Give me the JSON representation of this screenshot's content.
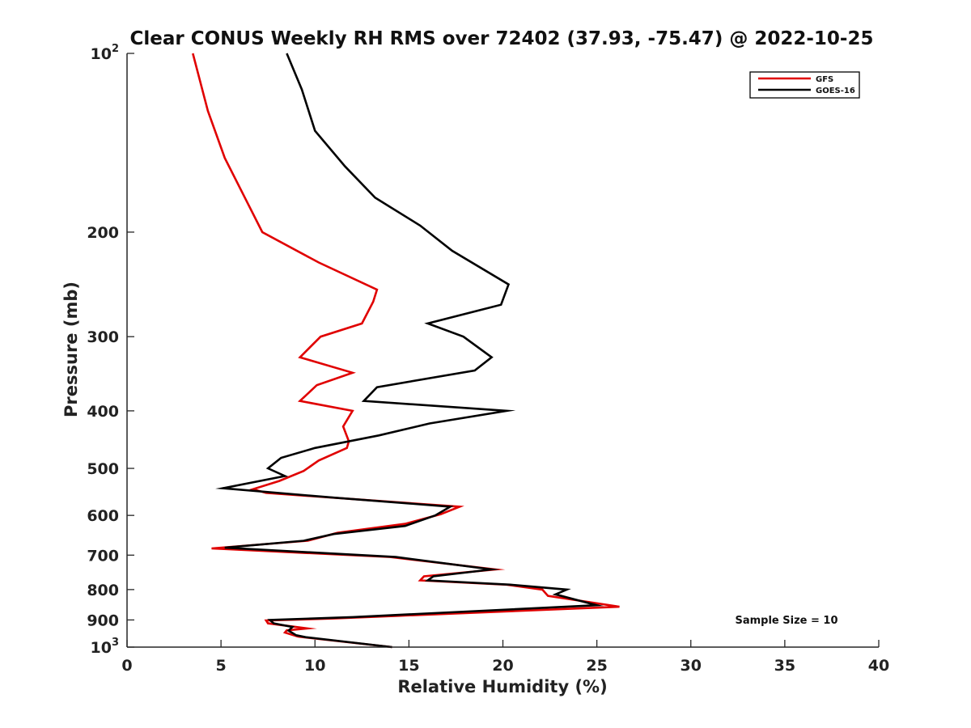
{
  "chart_data": {
    "type": "line",
    "title": "Clear CONUS Weekly RH RMS over 72402 (37.93, -75.47) @ 2022-10-25",
    "xlabel": "Relative Humidity (%)",
    "ylabel": "Pressure (mb)",
    "xlim": [
      0,
      40
    ],
    "ylim": [
      100,
      1000
    ],
    "yscale": "log",
    "y_reversed": true,
    "x_ticks": [
      0,
      5,
      10,
      15,
      20,
      25,
      30,
      35,
      40
    ],
    "x_tick_labels": [
      "0",
      "5",
      "10",
      "15",
      "20",
      "25",
      "30",
      "35",
      "40"
    ],
    "y_ticks": [
      100,
      200,
      300,
      400,
      500,
      600,
      700,
      800,
      900,
      1000
    ],
    "y_tick_labels": [
      {
        "base": "10",
        "exp": "2"
      },
      {
        "base": "200"
      },
      {
        "base": "300"
      },
      {
        "base": "400"
      },
      {
        "base": "500"
      },
      {
        "base": "600"
      },
      {
        "base": "700"
      },
      {
        "base": "800"
      },
      {
        "base": "900"
      },
      {
        "base": "10",
        "exp": "3"
      }
    ],
    "legend": {
      "position": "top-right"
    },
    "annotation": "Sample Size = 10",
    "series": [
      {
        "name": "GFS",
        "color": "#e00000",
        "points": [
          [
            3.5,
            100
          ],
          [
            4.3,
            125
          ],
          [
            5.2,
            150
          ],
          [
            7.2,
            200
          ],
          [
            10.2,
            225
          ],
          [
            13.3,
            250
          ],
          [
            13.1,
            262
          ],
          [
            12.5,
            285
          ],
          [
            10.3,
            300
          ],
          [
            9.2,
            325
          ],
          [
            12.0,
            345
          ],
          [
            10.1,
            362
          ],
          [
            9.2,
            385
          ],
          [
            12.0,
            400
          ],
          [
            11.5,
            425
          ],
          [
            11.8,
            450
          ],
          [
            11.7,
            462
          ],
          [
            10.2,
            485
          ],
          [
            9.4,
            505
          ],
          [
            8.1,
            525
          ],
          [
            6.7,
            542
          ],
          [
            7.4,
            550
          ],
          [
            17.7,
            580
          ],
          [
            16.7,
            597
          ],
          [
            14.8,
            620
          ],
          [
            11.2,
            642
          ],
          [
            9.6,
            662
          ],
          [
            4.5,
            682
          ],
          [
            14.0,
            705
          ],
          [
            19.6,
            740
          ],
          [
            15.8,
            760
          ],
          [
            15.6,
            772
          ],
          [
            20.2,
            785
          ],
          [
            22.1,
            800
          ],
          [
            22.4,
            820
          ],
          [
            26.2,
            855
          ],
          [
            11.0,
            895
          ],
          [
            7.4,
            902
          ],
          [
            7.5,
            912
          ],
          [
            9.6,
            930
          ],
          [
            8.5,
            937
          ],
          [
            8.4,
            945
          ],
          [
            9.1,
            960
          ],
          [
            14.1,
            1000
          ]
        ]
      },
      {
        "name": "GOES-16",
        "color": "#000000",
        "points": [
          [
            8.5,
            100
          ],
          [
            9.3,
            115
          ],
          [
            10.0,
            135
          ],
          [
            11.6,
            155
          ],
          [
            13.2,
            175
          ],
          [
            15.6,
            195
          ],
          [
            17.3,
            215
          ],
          [
            20.3,
            245
          ],
          [
            19.9,
            265
          ],
          [
            16.0,
            285
          ],
          [
            17.9,
            300
          ],
          [
            19.4,
            325
          ],
          [
            18.5,
            342
          ],
          [
            13.3,
            365
          ],
          [
            12.6,
            385
          ],
          [
            20.2,
            400
          ],
          [
            16.1,
            420
          ],
          [
            13.4,
            440
          ],
          [
            10.0,
            462
          ],
          [
            8.2,
            480
          ],
          [
            7.5,
            500
          ],
          [
            8.4,
            515
          ],
          [
            5.1,
            540
          ],
          [
            11.0,
            560
          ],
          [
            17.2,
            580
          ],
          [
            16.4,
            600
          ],
          [
            14.8,
            625
          ],
          [
            11.0,
            645
          ],
          [
            9.4,
            662
          ],
          [
            5.2,
            680
          ],
          [
            14.3,
            705
          ],
          [
            19.4,
            740
          ],
          [
            16.3,
            760
          ],
          [
            16.0,
            772
          ],
          [
            20.4,
            785
          ],
          [
            23.4,
            800
          ],
          [
            22.8,
            815
          ],
          [
            25.0,
            850
          ],
          [
            12.0,
            890
          ],
          [
            7.6,
            900
          ],
          [
            7.8,
            912
          ],
          [
            8.8,
            925
          ],
          [
            8.6,
            938
          ],
          [
            9.0,
            955
          ],
          [
            9.5,
            962
          ],
          [
            14.1,
            1000
          ]
        ]
      }
    ]
  }
}
